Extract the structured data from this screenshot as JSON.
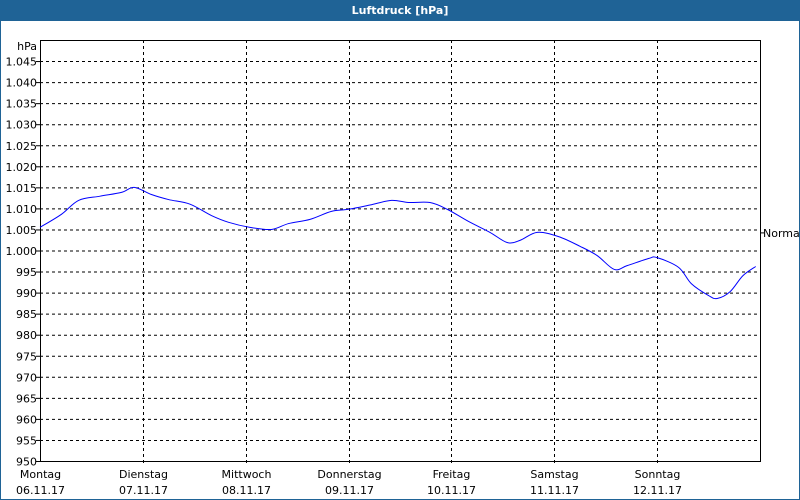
{
  "chart_data": {
    "type": "line",
    "title": "Luftdruck [hPa]",
    "ylabel": "hPa",
    "ylim": [
      950,
      1050
    ],
    "yticks": [
      950,
      955,
      960,
      965,
      970,
      975,
      980,
      985,
      990,
      995,
      1000,
      1005,
      1010,
      1015,
      1020,
      1025,
      1030,
      1035,
      1040,
      1045
    ],
    "ytick_labels": [
      "950",
      "955",
      "960",
      "965",
      "970",
      "975",
      "980",
      "985",
      "990",
      "995",
      "1.000",
      "1.005",
      "1.010",
      "1.015",
      "1.020",
      "1.025",
      "1.030",
      "1.035",
      "1.040",
      "1.045"
    ],
    "xlim": [
      "2017-11-06T00:00",
      "2017-11-13T00:00"
    ],
    "xticks": [
      {
        "day": "Montag",
        "date": "06.11.17",
        "t": "2017-11-06T00:00"
      },
      {
        "day": "Dienstag",
        "date": "07.11.17",
        "t": "2017-11-07T00:00"
      },
      {
        "day": "Mittwoch",
        "date": "08.11.17",
        "t": "2017-11-08T00:00"
      },
      {
        "day": "Donnerstag",
        "date": "09.11.17",
        "t": "2017-11-09T00:00"
      },
      {
        "day": "Freitag",
        "date": "10.11.17",
        "t": "2017-11-10T00:00"
      },
      {
        "day": "Samstag",
        "date": "11.11.17",
        "t": "2017-11-11T00:00"
      },
      {
        "day": "Sonntag",
        "date": "12.11.17",
        "t": "2017-11-12T00:00"
      }
    ],
    "grid": true,
    "reference": {
      "label": "Normal",
      "value": 1004.3
    },
    "series": [
      {
        "color": "#0000ff",
        "x": [
          "2017-11-06T00:00",
          "2017-11-06T05:00",
          "2017-11-06T09:00",
          "2017-11-06T14:00",
          "2017-11-06T19:00",
          "2017-11-06T22:00",
          "2017-11-07T02:00",
          "2017-11-07T06:00",
          "2017-11-07T11:00",
          "2017-11-07T16:00",
          "2017-11-07T20:00",
          "2017-11-08T01:00",
          "2017-11-08T06:00",
          "2017-11-08T10:00",
          "2017-11-08T15:00",
          "2017-11-08T20:00",
          "2017-11-09T00:00",
          "2017-11-09T05:00",
          "2017-11-09T10:00",
          "2017-11-09T14:00",
          "2017-11-09T19:00",
          "2017-11-09T23:00",
          "2017-11-10T04:00",
          "2017-11-10T09:00",
          "2017-11-10T13:00",
          "2017-11-10T16:00",
          "2017-11-10T20:00",
          "2017-11-11T01:00",
          "2017-11-11T06:00",
          "2017-11-11T10:00",
          "2017-11-11T14:00",
          "2017-11-11T17:00",
          "2017-11-11T22:00",
          "2017-11-12T00:00",
          "2017-11-12T05:00",
          "2017-11-12T08:00",
          "2017-11-12T12:00",
          "2017-11-12T14:00",
          "2017-11-12T17:00",
          "2017-11-12T20:00",
          "2017-11-12T23:00"
        ],
        "y": [
          1005.5,
          1008.6,
          1011.9,
          1012.9,
          1013.8,
          1015.0,
          1013.3,
          1012.1,
          1011.0,
          1008.3,
          1006.7,
          1005.5,
          1005.0,
          1006.4,
          1007.4,
          1009.3,
          1009.8,
          1010.8,
          1011.9,
          1011.4,
          1011.4,
          1009.8,
          1006.9,
          1004.3,
          1001.9,
          1002.4,
          1004.3,
          1003.3,
          1001.0,
          998.8,
          995.5,
          996.4,
          998.1,
          998.3,
          996.0,
          992.1,
          989.3,
          988.6,
          990.2,
          994.0,
          996.2
        ]
      }
    ]
  }
}
